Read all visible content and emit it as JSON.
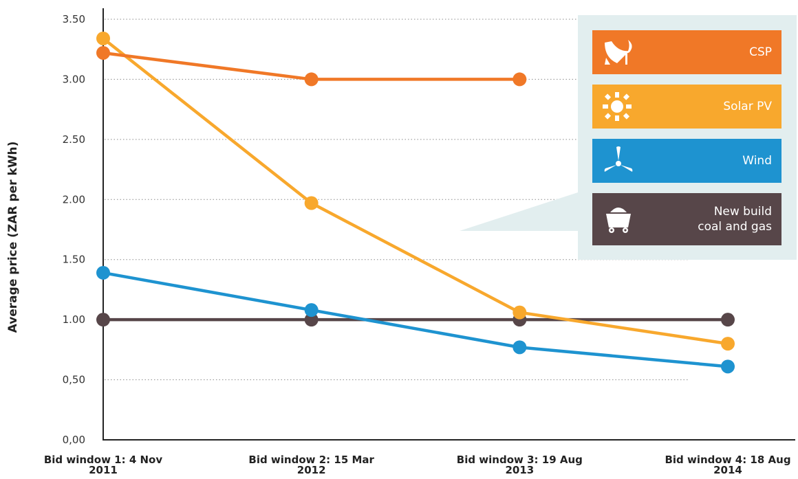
{
  "chart_data": {
    "type": "line",
    "ylabel": "Average price (ZAR per kWh)",
    "xlabel": "",
    "categories": [
      [
        "Bid window 1: 4 Nov",
        "2011"
      ],
      [
        "Bid window 2: 15 Mar",
        "2012"
      ],
      [
        "Bid window 3: 19 Aug",
        "2013"
      ],
      [
        "Bid window 4: 18 Aug",
        "2014"
      ]
    ],
    "ylim": [
      0,
      3.5
    ],
    "yticks": [
      {
        "value": 0,
        "label": "0,00"
      },
      {
        "value": 0.5,
        "label": "0,50"
      },
      {
        "value": 1.0,
        "label": "1.00"
      },
      {
        "value": 1.5,
        "label": "1.50"
      },
      {
        "value": 2.0,
        "label": "2.00"
      },
      {
        "value": 2.5,
        "label": "2.50"
      },
      {
        "value": 3.0,
        "label": "3.00"
      },
      {
        "value": 3.5,
        "label": "3.50"
      }
    ],
    "grid": "horizontal-dotted",
    "legend_position": "top-right",
    "series": [
      {
        "name": "New build\ncoal and gas",
        "color": "#574649",
        "icon": "coal-cart-icon",
        "values": [
          1.0,
          1.0,
          1.0,
          1.0
        ]
      },
      {
        "name": "Wind",
        "color": "#1e93d0",
        "icon": "wind-turbine-icon",
        "values": [
          1.39,
          1.08,
          0.77,
          0.61
        ]
      },
      {
        "name": "Solar PV",
        "color": "#f8a82d",
        "icon": "sun-icon",
        "values": [
          3.34,
          1.97,
          1.06,
          0.8
        ]
      },
      {
        "name": "CSP",
        "color": "#f07827",
        "icon": "csp-dish-icon",
        "values": [
          3.22,
          3.0,
          3.0,
          null
        ]
      }
    ]
  }
}
